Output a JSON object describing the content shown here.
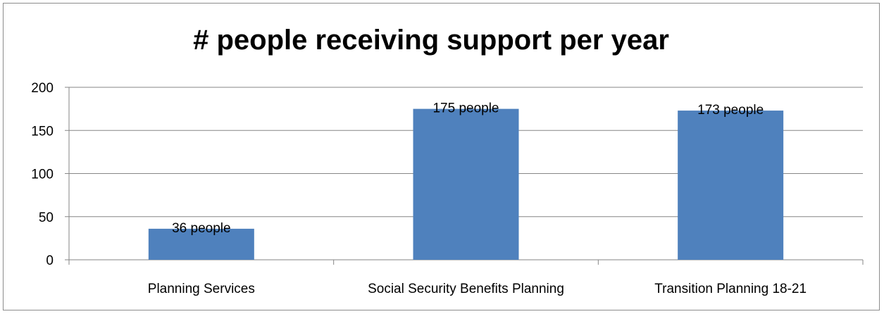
{
  "chart_data": {
    "type": "bar",
    "title": "# people receiving support per year",
    "categories": [
      "Planning Services",
      "Social Security Benefits Planning",
      "Transition Planning 18-21"
    ],
    "values": [
      36,
      175,
      173
    ],
    "data_labels": [
      "36 people",
      "175 people",
      "173 people"
    ],
    "ylim": [
      0,
      200
    ],
    "yticks": [
      0,
      50,
      100,
      150,
      200
    ],
    "xlabel": "",
    "ylabel": "",
    "grid": true,
    "legend": "none",
    "bar_color": "#4f81bd"
  }
}
